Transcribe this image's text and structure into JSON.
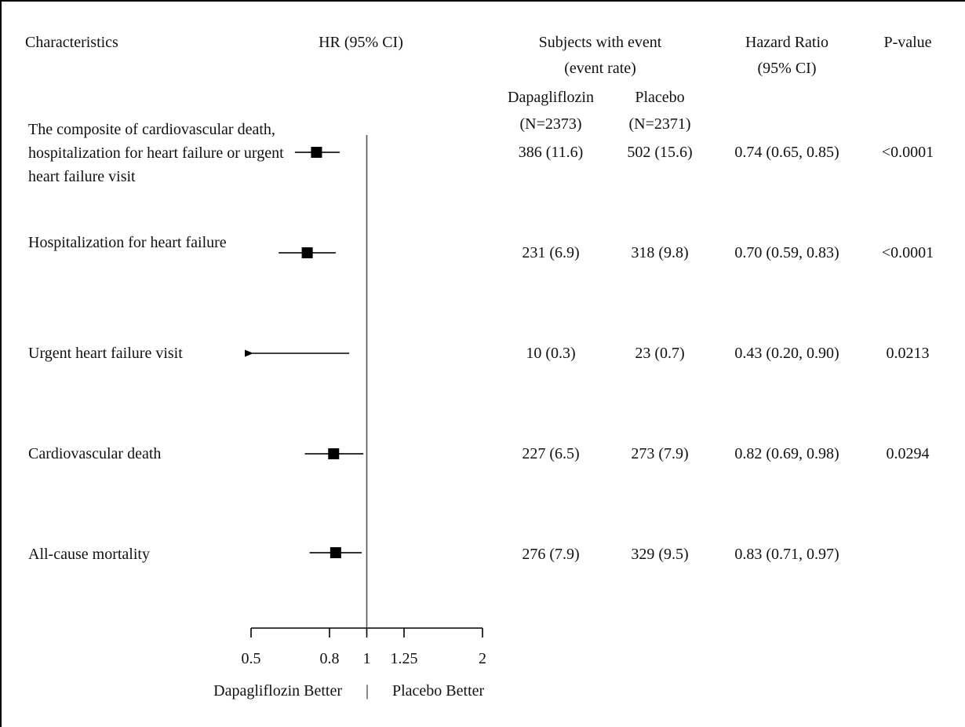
{
  "header": {
    "characteristics": "Characteristics",
    "hr_ci": "HR (95% CI)",
    "subjects_line1": "Subjects with event",
    "subjects_line2": "(event rate)",
    "hazard_line1": "Hazard Ratio",
    "hazard_line2": "(95% CI)",
    "pvalue": "P-value",
    "group1_name": "Dapagliflozin",
    "group1_n": "(N=2373)",
    "group2_name": "Placebo",
    "group2_n": "(N=2371)"
  },
  "footer": {
    "left_better": "Dapagliflozin Better",
    "separator": "|",
    "right_better": "Placebo Better"
  },
  "chart_data": {
    "type": "forest",
    "xlabel": "",
    "xscale": "log",
    "xlim": [
      0.5,
      2
    ],
    "reference": 1,
    "ticks": [
      0.5,
      0.8,
      1,
      1.25,
      2
    ],
    "tick_labels": [
      "0.5",
      "0.8",
      "1",
      "1.25",
      "2"
    ],
    "grid": false,
    "rows": [
      {
        "label": "The composite of cardiovascular death, hospitalization for heart failure or urgent heart failure visit",
        "hr": 0.74,
        "lower": 0.65,
        "upper": 0.85,
        "truncated_left": false,
        "dapagliflozin": "386 (11.6)",
        "placebo": "502 (15.6)",
        "hr_ci_text": "0.74 (0.65, 0.85)",
        "p_value": "<0.0001"
      },
      {
        "label": "Hospitalization for heart failure",
        "hr": 0.7,
        "lower": 0.59,
        "upper": 0.83,
        "truncated_left": false,
        "dapagliflozin": "231 (6.9)",
        "placebo": "318 (9.8)",
        "hr_ci_text": "0.70 (0.59, 0.83)",
        "p_value": "<0.0001"
      },
      {
        "label": "Urgent heart failure visit",
        "hr": 0.43,
        "lower": 0.2,
        "upper": 0.9,
        "truncated_left": true,
        "dapagliflozin": "10 (0.3)",
        "placebo": "23 (0.7)",
        "hr_ci_text": "0.43 (0.20, 0.90)",
        "p_value": "0.0213"
      },
      {
        "label": "Cardiovascular death",
        "hr": 0.82,
        "lower": 0.69,
        "upper": 0.98,
        "truncated_left": false,
        "dapagliflozin": "227 (6.5)",
        "placebo": "273 (7.9)",
        "hr_ci_text": "0.82 (0.69, 0.98)",
        "p_value": "0.0294"
      },
      {
        "label": "All-cause mortality",
        "hr": 0.83,
        "lower": 0.71,
        "upper": 0.97,
        "truncated_left": false,
        "dapagliflozin": "276 (7.9)",
        "placebo": "329 (9.5)",
        "hr_ci_text": "0.83 (0.71, 0.97)",
        "p_value": ""
      }
    ]
  }
}
